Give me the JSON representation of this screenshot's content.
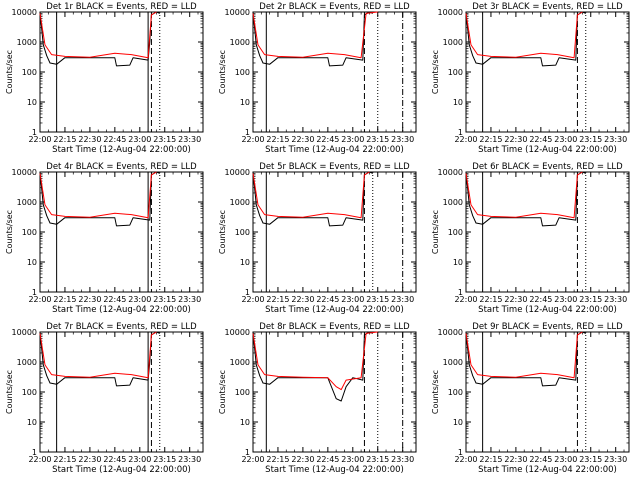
{
  "figure": {
    "background": "#ffffff",
    "ink": "#000000",
    "accent_red": "#ff0000"
  },
  "chart_data": [
    {
      "type": "line",
      "title": "Det 1r BLACK = Events, RED = LLD",
      "xlabel": "Start Time (12-Aug-04 22:00:00)",
      "ylabel": "Counts/sec",
      "y_scale": "log",
      "ylim": [
        1,
        10000
      ],
      "y_ticks": [
        "1",
        "10",
        "100",
        "1000",
        "10000"
      ],
      "x_ticks": [
        "22:00",
        "22:15",
        "22:30",
        "22:45",
        "23:00",
        "23:15",
        "23:30"
      ],
      "series": [
        {
          "name": "Events",
          "color": "#000000",
          "x": [
            "22:00",
            "22:02",
            "22:04",
            "22:06",
            "22:10",
            "22:15",
            "22:30",
            "22:45",
            "22:46",
            "22:54",
            "22:56",
            "23:05",
            "23:06",
            "23:07",
            "23:10",
            "23:12"
          ],
          "y": [
            10000,
            800,
            350,
            200,
            180,
            300,
            300,
            300,
            160,
            170,
            300,
            250,
            1000,
            8000,
            10000,
            9000
          ]
        },
        {
          "name": "LLD",
          "color": "#ff0000",
          "x": [
            "22:00",
            "22:03",
            "22:07",
            "22:15",
            "22:30",
            "22:45",
            "22:55",
            "23:05",
            "23:07",
            "23:10"
          ],
          "y": [
            9000,
            800,
            380,
            330,
            310,
            420,
            380,
            300,
            8000,
            10000
          ]
        }
      ],
      "vlines": [
        {
          "x": "22:00",
          "style": "solid"
        },
        {
          "x": "22:10",
          "style": "solid"
        },
        {
          "x": "23:05",
          "style": "solid"
        },
        {
          "x": "23:07",
          "style": "dashed"
        },
        {
          "x": "23:12",
          "style": "dotted"
        }
      ]
    },
    {
      "type": "line",
      "title": "Det 2r BLACK = Events, RED = LLD",
      "xlabel": "Start Time (12-Aug-04 22:00:00)",
      "ylabel": "Counts/sec",
      "y_scale": "log",
      "ylim": [
        1,
        10000
      ],
      "y_ticks": [
        "1",
        "10",
        "100",
        "1000",
        "10000"
      ],
      "x_ticks": [
        "22:00",
        "22:15",
        "22:30",
        "22:45",
        "23:00",
        "23:15",
        "23:30"
      ],
      "series": [
        {
          "name": "Events",
          "color": "#000000",
          "x": [
            "22:00",
            "22:02",
            "22:04",
            "22:06",
            "22:10",
            "22:15",
            "22:30",
            "22:45",
            "22:46",
            "22:54",
            "22:56",
            "23:06",
            "23:07",
            "23:10",
            "23:12"
          ],
          "y": [
            10000,
            800,
            350,
            200,
            180,
            300,
            300,
            300,
            160,
            170,
            300,
            250,
            8000,
            10000,
            9000
          ]
        },
        {
          "name": "LLD",
          "color": "#ff0000",
          "x": [
            "22:00",
            "22:03",
            "22:07",
            "22:15",
            "22:30",
            "22:45",
            "22:55",
            "23:05",
            "23:08",
            "23:15"
          ],
          "y": [
            9000,
            800,
            380,
            330,
            310,
            420,
            380,
            300,
            9000,
            10000
          ]
        }
      ],
      "vlines": [
        {
          "x": "22:00",
          "style": "solid"
        },
        {
          "x": "22:08",
          "style": "solid"
        },
        {
          "x": "23:07",
          "style": "dashed"
        },
        {
          "x": "23:15",
          "style": "dotted"
        },
        {
          "x": "23:30",
          "style": "dashdot"
        }
      ]
    },
    {
      "type": "line",
      "title": "Det 3r BLACK = Events, RED = LLD",
      "xlabel": "Start Time (12-Aug-04 22:00:00)",
      "ylabel": "Counts/sec",
      "y_scale": "log",
      "ylim": [
        1,
        10000
      ],
      "y_ticks": [
        "1",
        "10",
        "100",
        "1000",
        "10000"
      ],
      "x_ticks": [
        "22:00",
        "22:15",
        "22:30",
        "22:45",
        "23:00",
        "23:15",
        "23:30"
      ],
      "series": [
        {
          "name": "Events",
          "color": "#000000",
          "x": [
            "22:00",
            "22:02",
            "22:04",
            "22:06",
            "22:10",
            "22:15",
            "22:30",
            "22:45",
            "22:46",
            "22:54",
            "22:56",
            "23:06",
            "23:07",
            "23:10",
            "23:12"
          ],
          "y": [
            10000,
            800,
            350,
            200,
            180,
            300,
            300,
            300,
            160,
            170,
            300,
            250,
            8000,
            10000,
            9000
          ]
        },
        {
          "name": "LLD",
          "color": "#ff0000",
          "x": [
            "22:00",
            "22:03",
            "22:07",
            "22:15",
            "22:30",
            "22:45",
            "22:55",
            "23:05",
            "23:07",
            "23:10"
          ],
          "y": [
            9000,
            800,
            380,
            330,
            310,
            420,
            380,
            300,
            8000,
            10000
          ]
        }
      ],
      "vlines": [
        {
          "x": "22:00",
          "style": "solid"
        },
        {
          "x": "22:10",
          "style": "solid"
        },
        {
          "x": "23:07",
          "style": "dashed"
        },
        {
          "x": "23:12",
          "style": "dotted"
        }
      ]
    },
    {
      "type": "line",
      "title": "Det 4r BLACK = Events, RED = LLD",
      "xlabel": "Start Time (12-Aug-04 22:00:00)",
      "ylabel": "Counts/sec",
      "y_scale": "log",
      "ylim": [
        1,
        10000
      ],
      "y_ticks": [
        "1",
        "10",
        "100",
        "1000",
        "10000"
      ],
      "x_ticks": [
        "22:00",
        "22:15",
        "22:30",
        "22:45",
        "23:00",
        "23:15",
        "23:30"
      ],
      "series": [
        {
          "name": "Events",
          "color": "#000000",
          "x": [
            "22:00",
            "22:02",
            "22:04",
            "22:06",
            "22:10",
            "22:15",
            "22:30",
            "22:45",
            "22:46",
            "22:54",
            "22:56",
            "23:06",
            "23:07",
            "23:10",
            "23:12"
          ],
          "y": [
            10000,
            800,
            350,
            200,
            180,
            300,
            300,
            300,
            160,
            170,
            300,
            250,
            8000,
            10000,
            9000
          ]
        },
        {
          "name": "LLD",
          "color": "#ff0000",
          "x": [
            "22:00",
            "22:03",
            "22:07",
            "22:15",
            "22:30",
            "22:45",
            "22:55",
            "23:05",
            "23:07",
            "23:10"
          ],
          "y": [
            9000,
            800,
            380,
            330,
            310,
            420,
            380,
            300,
            8000,
            10000
          ]
        }
      ],
      "vlines": [
        {
          "x": "22:00",
          "style": "solid"
        },
        {
          "x": "22:10",
          "style": "solid"
        },
        {
          "x": "23:05",
          "style": "solid"
        },
        {
          "x": "23:07",
          "style": "dashed"
        },
        {
          "x": "23:12",
          "style": "dotted"
        }
      ]
    },
    {
      "type": "line",
      "title": "Det 5r BLACK = Events, RED = LLD",
      "xlabel": "Start Time (12-Aug-04 22:00:00)",
      "ylabel": "Counts/sec",
      "y_scale": "log",
      "ylim": [
        1,
        10000
      ],
      "y_ticks": [
        "1",
        "10",
        "100",
        "1000",
        "10000"
      ],
      "x_ticks": [
        "22:00",
        "22:15",
        "22:30",
        "22:45",
        "23:00",
        "23:15",
        "23:30"
      ],
      "series": [
        {
          "name": "Events",
          "color": "#000000",
          "x": [
            "22:00",
            "22:02",
            "22:04",
            "22:06",
            "22:10",
            "22:15",
            "22:30",
            "22:45",
            "22:46",
            "22:54",
            "22:56",
            "23:06",
            "23:07",
            "23:10",
            "23:12"
          ],
          "y": [
            10000,
            800,
            350,
            200,
            180,
            300,
            300,
            300,
            160,
            170,
            300,
            250,
            8000,
            10000,
            9000
          ]
        },
        {
          "name": "LLD",
          "color": "#ff0000",
          "x": [
            "22:00",
            "22:03",
            "22:07",
            "22:15",
            "22:30",
            "22:45",
            "22:55",
            "23:05",
            "23:07",
            "23:10"
          ],
          "y": [
            9000,
            800,
            380,
            330,
            310,
            420,
            380,
            300,
            8000,
            10000
          ]
        }
      ],
      "vlines": [
        {
          "x": "22:00",
          "style": "solid"
        },
        {
          "x": "22:08",
          "style": "solid"
        },
        {
          "x": "23:07",
          "style": "dashed"
        },
        {
          "x": "23:12",
          "style": "dotted"
        },
        {
          "x": "23:30",
          "style": "dashdot"
        }
      ]
    },
    {
      "type": "line",
      "title": "Det 6r BLACK = Events, RED = LLD",
      "xlabel": "Start Time (12-Aug-04 22:00:00)",
      "ylabel": "Counts/sec",
      "y_scale": "log",
      "ylim": [
        1,
        10000
      ],
      "y_ticks": [
        "1",
        "10",
        "100",
        "1000",
        "10000"
      ],
      "x_ticks": [
        "22:00",
        "22:15",
        "22:30",
        "22:45",
        "23:00",
        "23:15",
        "23:30"
      ],
      "series": [
        {
          "name": "Events",
          "color": "#000000",
          "x": [
            "22:00",
            "22:02",
            "22:04",
            "22:06",
            "22:10",
            "22:15",
            "22:30",
            "22:45",
            "22:46",
            "22:54",
            "22:56",
            "23:06",
            "23:07",
            "23:10",
            "23:12"
          ],
          "y": [
            10000,
            800,
            350,
            200,
            180,
            300,
            300,
            300,
            160,
            170,
            300,
            250,
            8000,
            10000,
            9000
          ]
        },
        {
          "name": "LLD",
          "color": "#ff0000",
          "x": [
            "22:00",
            "22:03",
            "22:07",
            "22:15",
            "22:30",
            "22:45",
            "22:55",
            "23:05",
            "23:07",
            "23:10"
          ],
          "y": [
            9000,
            800,
            380,
            330,
            310,
            420,
            380,
            300,
            8000,
            10000
          ]
        }
      ],
      "vlines": [
        {
          "x": "22:00",
          "style": "solid"
        },
        {
          "x": "22:10",
          "style": "solid"
        },
        {
          "x": "23:07",
          "style": "dashed"
        },
        {
          "x": "23:12",
          "style": "dotted"
        }
      ]
    },
    {
      "type": "line",
      "title": "Det 7r BLACK = Events, RED = LLD",
      "xlabel": "Start Time (12-Aug-04 22:00:00)",
      "ylabel": "Counts/sec",
      "y_scale": "log",
      "ylim": [
        1,
        10000
      ],
      "y_ticks": [
        "1",
        "10",
        "100",
        "1000",
        "10000"
      ],
      "x_ticks": [
        "22:00",
        "22:15",
        "22:30",
        "22:45",
        "23:00",
        "23:15",
        "23:30"
      ],
      "series": [
        {
          "name": "Events",
          "color": "#000000",
          "x": [
            "22:00",
            "22:02",
            "22:04",
            "22:06",
            "22:10",
            "22:15",
            "22:30",
            "22:45",
            "22:46",
            "22:54",
            "22:56",
            "23:05",
            "23:06",
            "23:07",
            "23:10",
            "23:12"
          ],
          "y": [
            10000,
            800,
            350,
            200,
            180,
            300,
            300,
            300,
            160,
            170,
            300,
            250,
            1000,
            8000,
            10000,
            9000
          ]
        },
        {
          "name": "LLD",
          "color": "#ff0000",
          "x": [
            "22:00",
            "22:03",
            "22:07",
            "22:15",
            "22:30",
            "22:45",
            "22:55",
            "23:05",
            "23:07",
            "23:10"
          ],
          "y": [
            9000,
            800,
            380,
            330,
            310,
            420,
            380,
            300,
            8000,
            10000
          ]
        }
      ],
      "vlines": [
        {
          "x": "22:00",
          "style": "solid"
        },
        {
          "x": "22:10",
          "style": "solid"
        },
        {
          "x": "23:05",
          "style": "solid"
        },
        {
          "x": "23:07",
          "style": "dashed"
        },
        {
          "x": "23:12",
          "style": "dotted"
        }
      ]
    },
    {
      "type": "line",
      "title": "Det 8r BLACK = Events, RED = LLD",
      "xlabel": "Start Time (12-Aug-04 22:00:00)",
      "ylabel": "Counts/sec",
      "y_scale": "log",
      "ylim": [
        1,
        10000
      ],
      "y_ticks": [
        "1",
        "10",
        "100",
        "1000",
        "10000"
      ],
      "x_ticks": [
        "22:00",
        "22:15",
        "22:30",
        "22:45",
        "23:00",
        "23:15",
        "23:30"
      ],
      "series": [
        {
          "name": "Events",
          "color": "#000000",
          "x": [
            "22:00",
            "22:02",
            "22:04",
            "22:06",
            "22:10",
            "22:15",
            "22:30",
            "22:45",
            "22:50",
            "22:53",
            "22:56",
            "23:00",
            "23:06",
            "23:07",
            "23:10",
            "23:12"
          ],
          "y": [
            10000,
            800,
            350,
            200,
            180,
            300,
            300,
            300,
            60,
            50,
            150,
            300,
            250,
            8000,
            10000,
            9000
          ]
        },
        {
          "name": "LLD",
          "color": "#ff0000",
          "x": [
            "22:00",
            "22:03",
            "22:07",
            "22:15",
            "22:30",
            "22:45",
            "22:50",
            "22:53",
            "22:56",
            "23:05",
            "23:08",
            "23:15"
          ],
          "y": [
            9000,
            800,
            380,
            330,
            310,
            300,
            150,
            120,
            250,
            300,
            9000,
            10000
          ]
        }
      ],
      "vlines": [
        {
          "x": "22:00",
          "style": "solid"
        },
        {
          "x": "22:08",
          "style": "solid"
        },
        {
          "x": "23:07",
          "style": "dashed"
        },
        {
          "x": "23:15",
          "style": "dotted"
        },
        {
          "x": "23:30",
          "style": "dashdot"
        }
      ]
    },
    {
      "type": "line",
      "title": "Det 9r BLACK = Events, RED = LLD",
      "xlabel": "Start Time (12-Aug-04 22:00:00)",
      "ylabel": "Counts/sec",
      "y_scale": "log",
      "ylim": [
        1,
        10000
      ],
      "y_ticks": [
        "1",
        "10",
        "100",
        "1000",
        "10000"
      ],
      "x_ticks": [
        "22:00",
        "22:15",
        "22:30",
        "22:45",
        "23:00",
        "23:15",
        "23:30"
      ],
      "series": [
        {
          "name": "Events",
          "color": "#000000",
          "x": [
            "22:00",
            "22:02",
            "22:04",
            "22:06",
            "22:10",
            "22:15",
            "22:30",
            "22:45",
            "22:46",
            "22:54",
            "22:56",
            "23:06",
            "23:07",
            "23:10",
            "23:12"
          ],
          "y": [
            10000,
            800,
            350,
            200,
            180,
            300,
            300,
            300,
            160,
            170,
            300,
            250,
            8000,
            10000,
            9000
          ]
        },
        {
          "name": "LLD",
          "color": "#ff0000",
          "x": [
            "22:00",
            "22:03",
            "22:07",
            "22:15",
            "22:30",
            "22:45",
            "22:55",
            "23:05",
            "23:07",
            "23:10"
          ],
          "y": [
            9000,
            800,
            380,
            330,
            310,
            420,
            380,
            300,
            8000,
            10000
          ]
        }
      ],
      "vlines": [
        {
          "x": "22:00",
          "style": "solid"
        },
        {
          "x": "22:10",
          "style": "solid"
        },
        {
          "x": "23:07",
          "style": "dashed"
        },
        {
          "x": "23:12",
          "style": "dotted"
        }
      ]
    }
  ]
}
